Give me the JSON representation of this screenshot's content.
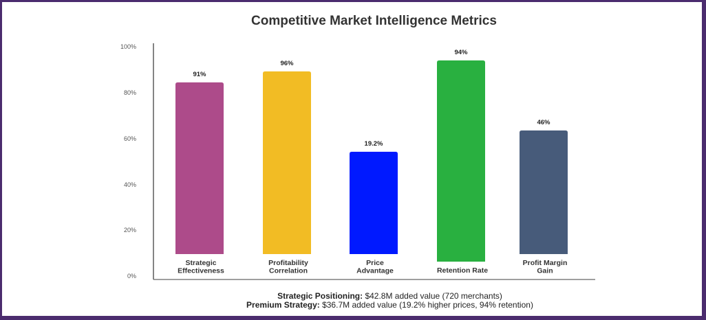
{
  "chart_data": {
    "type": "bar",
    "title": "Competitive Market Intelligence Metrics",
    "categories": [
      [
        "Strategic",
        "Effectiveness"
      ],
      [
        "Profitability",
        "Correlation"
      ],
      [
        "Price",
        "Advantage"
      ],
      [
        "Retention Rate"
      ],
      [
        "Profit Margin",
        "Gain"
      ]
    ],
    "values": [
      91,
      96,
      19.2,
      94,
      46
    ],
    "value_labels": [
      "91%",
      "96%",
      "19.2%",
      "94%",
      "46%"
    ],
    "colors": [
      "#ad4b8a",
      "#f2bc24",
      "#0019ff",
      "#29b040",
      "#475b7a"
    ],
    "yticks": [
      "100%",
      "80%",
      "60%",
      "40%",
      "20%",
      "0%"
    ],
    "ylim": [
      0,
      100
    ],
    "grid": false
  },
  "footer": {
    "line1_label": "Strategic Positioning:",
    "line1_text": " $42.8M added value (720 merchants)",
    "line2_label": "Premium Strategy:",
    "line2_text": " $36.7M added value (19.2% higher prices, 94% retention)"
  },
  "border_color": "#4b2c6e"
}
